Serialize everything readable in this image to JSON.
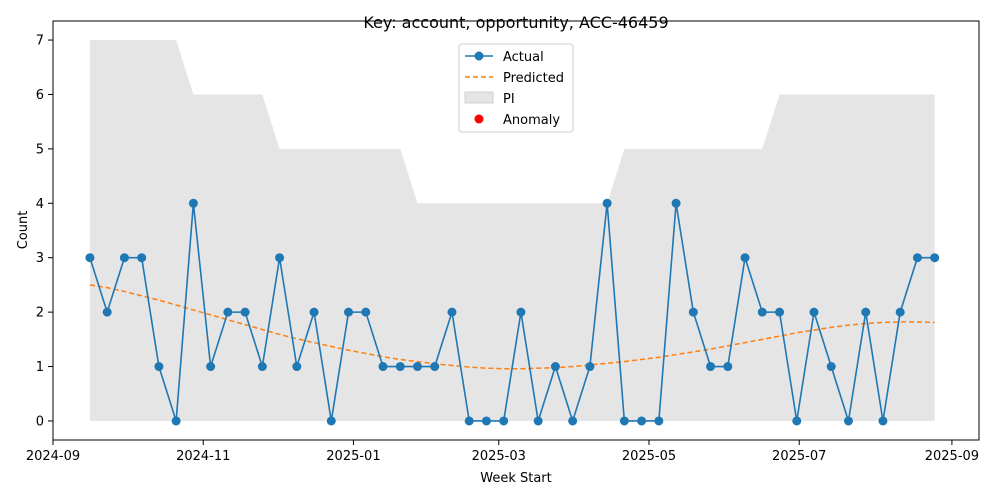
{
  "chart_data": {
    "type": "line",
    "title": "Key: account, opportunity, ACC-46459",
    "xlabel": "Week Start",
    "ylabel": "Count",
    "x_range": [
      "2024-09-01",
      "2025-09-12"
    ],
    "ylim": [
      -0.35,
      7.35
    ],
    "x_ticks": [
      {
        "date": "2024-09-01",
        "label": "2024-09"
      },
      {
        "date": "2024-11-01",
        "label": "2024-11"
      },
      {
        "date": "2025-01-01",
        "label": "2025-01"
      },
      {
        "date": "2025-03-01",
        "label": "2025-03"
      },
      {
        "date": "2025-05-01",
        "label": "2025-05"
      },
      {
        "date": "2025-07-01",
        "label": "2025-07"
      },
      {
        "date": "2025-09-01",
        "label": "2025-09"
      }
    ],
    "y_ticks": [
      0,
      1,
      2,
      3,
      4,
      5,
      6,
      7
    ],
    "grid": false,
    "legend": {
      "placement": "top-center",
      "entries": [
        {
          "label": "Actual",
          "kind": "line-marker",
          "color": "#1f77b4"
        },
        {
          "label": "Predicted",
          "kind": "dashed",
          "color": "#ff7f0e"
        },
        {
          "label": "PI",
          "kind": "patch",
          "color": "#e5e5e5"
        },
        {
          "label": "Anomaly",
          "kind": "scatter",
          "color": "#ff0000"
        }
      ]
    },
    "colors": {
      "actual": "#1f77b4",
      "predicted": "#ff7f0e",
      "pi": "#e5e5e5",
      "anomaly": "#ff0000"
    },
    "x": [
      "2024-09-16",
      "2024-09-23",
      "2024-09-30",
      "2024-10-07",
      "2024-10-14",
      "2024-10-21",
      "2024-10-28",
      "2024-11-04",
      "2024-11-11",
      "2024-11-18",
      "2024-11-25",
      "2024-12-02",
      "2024-12-09",
      "2024-12-16",
      "2024-12-23",
      "2024-12-30",
      "2025-01-06",
      "2025-01-13",
      "2025-01-20",
      "2025-01-27",
      "2025-02-03",
      "2025-02-10",
      "2025-02-17",
      "2025-02-24",
      "2025-03-03",
      "2025-03-10",
      "2025-03-17",
      "2025-03-24",
      "2025-03-31",
      "2025-04-07",
      "2025-04-14",
      "2025-04-21",
      "2025-04-28",
      "2025-05-05",
      "2025-05-12",
      "2025-05-19",
      "2025-05-26",
      "2025-06-02",
      "2025-06-09",
      "2025-06-16",
      "2025-06-23",
      "2025-06-30",
      "2025-07-07",
      "2025-07-14",
      "2025-07-21",
      "2025-07-28",
      "2025-08-04",
      "2025-08-11",
      "2025-08-18",
      "2025-08-25"
    ],
    "series": [
      {
        "name": "Actual",
        "values": [
          3,
          2,
          3,
          3,
          1,
          0,
          4,
          1,
          2,
          2,
          1,
          3,
          1,
          2,
          0,
          2,
          2,
          1,
          1,
          1,
          1,
          2,
          0,
          0,
          0,
          2,
          0,
          1,
          0,
          1,
          4,
          0,
          0,
          0,
          4,
          2,
          1,
          1,
          3,
          2,
          2,
          0,
          2,
          1,
          0,
          2,
          0,
          2,
          3,
          3
        ]
      },
      {
        "name": "Predicted",
        "values": [
          2.5,
          2.45,
          2.38,
          2.3,
          2.22,
          2.13,
          2.04,
          1.95,
          1.86,
          1.77,
          1.68,
          1.59,
          1.51,
          1.44,
          1.37,
          1.3,
          1.24,
          1.18,
          1.13,
          1.09,
          1.05,
          1.02,
          0.99,
          0.97,
          0.96,
          0.96,
          0.97,
          0.98,
          1.0,
          1.03,
          1.06,
          1.09,
          1.13,
          1.17,
          1.22,
          1.27,
          1.32,
          1.38,
          1.44,
          1.5,
          1.56,
          1.62,
          1.67,
          1.72,
          1.76,
          1.79,
          1.81,
          1.82,
          1.82,
          1.81
        ]
      },
      {
        "name": "PI",
        "lower": [
          0,
          0,
          0,
          0,
          0,
          0,
          0,
          0,
          0,
          0,
          0,
          0,
          0,
          0,
          0,
          0,
          0,
          0,
          0,
          0,
          0,
          0,
          0,
          0,
          0,
          0,
          0,
          0,
          0,
          0,
          0,
          0,
          0,
          0,
          0,
          0,
          0,
          0,
          0,
          0,
          0,
          0,
          0,
          0,
          0,
          0,
          0,
          0,
          0,
          0
        ],
        "upper": [
          7,
          7,
          7,
          7,
          7,
          7,
          6,
          6,
          6,
          6,
          6,
          5,
          5,
          5,
          5,
          5,
          5,
          5,
          5,
          4,
          4,
          4,
          4,
          4,
          4,
          4,
          4,
          4,
          4,
          4,
          4,
          5,
          5,
          5,
          5,
          5,
          5,
          5,
          5,
          5,
          6,
          6,
          6,
          6,
          6,
          6,
          6,
          6,
          6,
          6
        ]
      }
    ],
    "anomalies": []
  }
}
